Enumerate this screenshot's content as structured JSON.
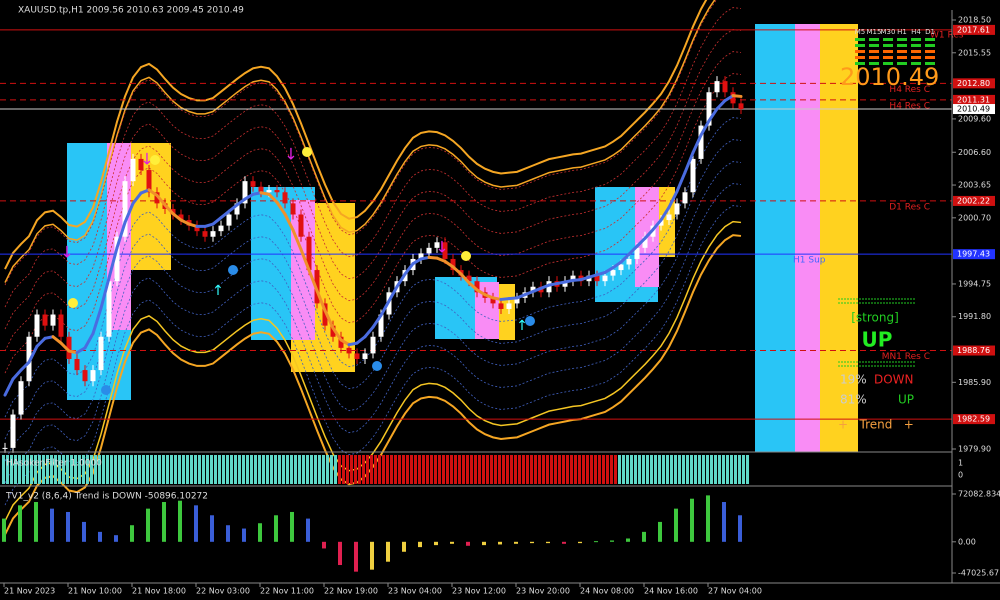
{
  "header": {
    "symbol_info": "XAUUSD.tp,H1  2009.56 2010.63 2009.45 2010.49"
  },
  "price_axis": {
    "ticks": [
      {
        "value": 2018.5,
        "label": "2018.50"
      },
      {
        "value": 2015.55,
        "label": "2015.55"
      },
      {
        "value": 2009.6,
        "label": "2009.60"
      },
      {
        "value": 2006.6,
        "label": "2006.60"
      },
      {
        "value": 2003.65,
        "label": "2003.65"
      },
      {
        "value": 2000.7,
        "label": "2000.70"
      },
      {
        "value": 1994.75,
        "label": "1994.75"
      },
      {
        "value": 1991.8,
        "label": "1991.80"
      },
      {
        "value": 1985.9,
        "label": "1985.90"
      },
      {
        "value": 1979.9,
        "label": "1979.90"
      }
    ]
  },
  "levels": [
    {
      "name": "W1 Res",
      "value": 2017.61,
      "label": "2017.61",
      "kind": "solid-red"
    },
    {
      "name": "H4 Res C",
      "value": 2012.8,
      "label": "2012.80",
      "kind": "dashed-red"
    },
    {
      "name": "H4 Res C",
      "value": 2011.31,
      "label": "2011.31",
      "kind": "dashed-red"
    },
    {
      "value": 2010.49,
      "label": "2010.49",
      "kind": "current"
    },
    {
      "name": "D1 Res C",
      "value": 2002.22,
      "label": "2002.22",
      "kind": "dashed-red"
    },
    {
      "name": "H1 Sup",
      "value": 1997.43,
      "label": "1997.43",
      "kind": "solid-blue"
    },
    {
      "name": "MN1 Res C",
      "value": 1988.76,
      "label": "1988.76",
      "kind": "dashed-red"
    },
    {
      "value": 1982.59,
      "label": "1982.59",
      "kind": "solid-red"
    }
  ],
  "candles": {
    "closes": [
      1980,
      1983,
      1986,
      1990,
      1992,
      1991,
      1992,
      1990,
      1988,
      1987,
      1986,
      1987,
      1990,
      1995,
      1999,
      2004,
      2006,
      2005,
      2003,
      2002,
      2001.5,
      2001,
      2000.5,
      2000,
      1999.5,
      1999,
      1999.5,
      2000,
      2001,
      2002,
      2004,
      2003.5,
      2003,
      2003.2,
      2003,
      2002,
      2001,
      1999,
      1996,
      1993,
      1991,
      1990,
      1989,
      1988.5,
      1988,
      1988.5,
      1990,
      1992,
      1994,
      1995,
      1996,
      1997,
      1997.5,
      1998,
      1998.5,
      1997,
      1996,
      1995.5,
      1995,
      1994,
      1993.5,
      1993,
      1992.5,
      1993,
      1993.5,
      1994,
      1994.5,
      1994,
      1995,
      1994.5,
      1995,
      1995.5,
      1995,
      1995.5,
      1995,
      1995.5,
      1996,
      1996.5,
      1997,
      1998,
      1999,
      2000,
      2000.5,
      2001,
      2002,
      2003,
      2006,
      2009,
      2012,
      2013,
      2012,
      2011,
      2010.49
    ]
  },
  "time_axis": [
    "21 Nov 2023",
    "21 Nov 10:00",
    "21 Nov 18:00",
    "22 Nov 03:00",
    "22 Nov 11:00",
    "22 Nov 19:00",
    "23 Nov 04:00",
    "23 Nov 12:00",
    "23 Nov 20:00",
    "24 Nov 08:00",
    "24 Nov 16:00",
    "27 Nov 04:00"
  ],
  "info_panel": {
    "price": "2010.49",
    "timeframes": [
      "M5",
      "M15",
      "M30",
      "H1",
      "H4",
      "D1"
    ],
    "strength": "[strong]",
    "direction": "UP",
    "down_pct": "19%",
    "down_label": "DOWN",
    "up_pct": "81%",
    "up_label": "UP",
    "trend": "+   Trend   +"
  },
  "filter_panel": {
    "title": "HAsokenFilter 1.0000",
    "ticks": [
      "1",
      "0"
    ]
  },
  "tv1_panel": {
    "title": "TV1_v2 (8,6,4) Trend is DOWN -50896.10272",
    "ticks": [
      {
        "value": 72082.834,
        "label": "72082.834"
      },
      {
        "value": 0,
        "label": "0.00"
      },
      {
        "value": -47025.67,
        "label": "-47025.67"
      }
    ],
    "values": [
      35000,
      55000,
      60000,
      50000,
      45000,
      30000,
      15000,
      10000,
      25000,
      50000,
      60000,
      62000,
      55000,
      40000,
      25000,
      20000,
      28000,
      40000,
      45000,
      35000,
      -10000,
      -35000,
      -45000,
      -42000,
      -30000,
      -15000,
      -8000,
      -5000,
      -3000,
      -6000,
      -5000,
      -4000,
      -3000,
      -2000,
      -2000,
      -3000,
      -2000,
      1000,
      2000,
      5000,
      15000,
      30000,
      50000,
      65000,
      70000,
      60000,
      40000
    ]
  }
}
